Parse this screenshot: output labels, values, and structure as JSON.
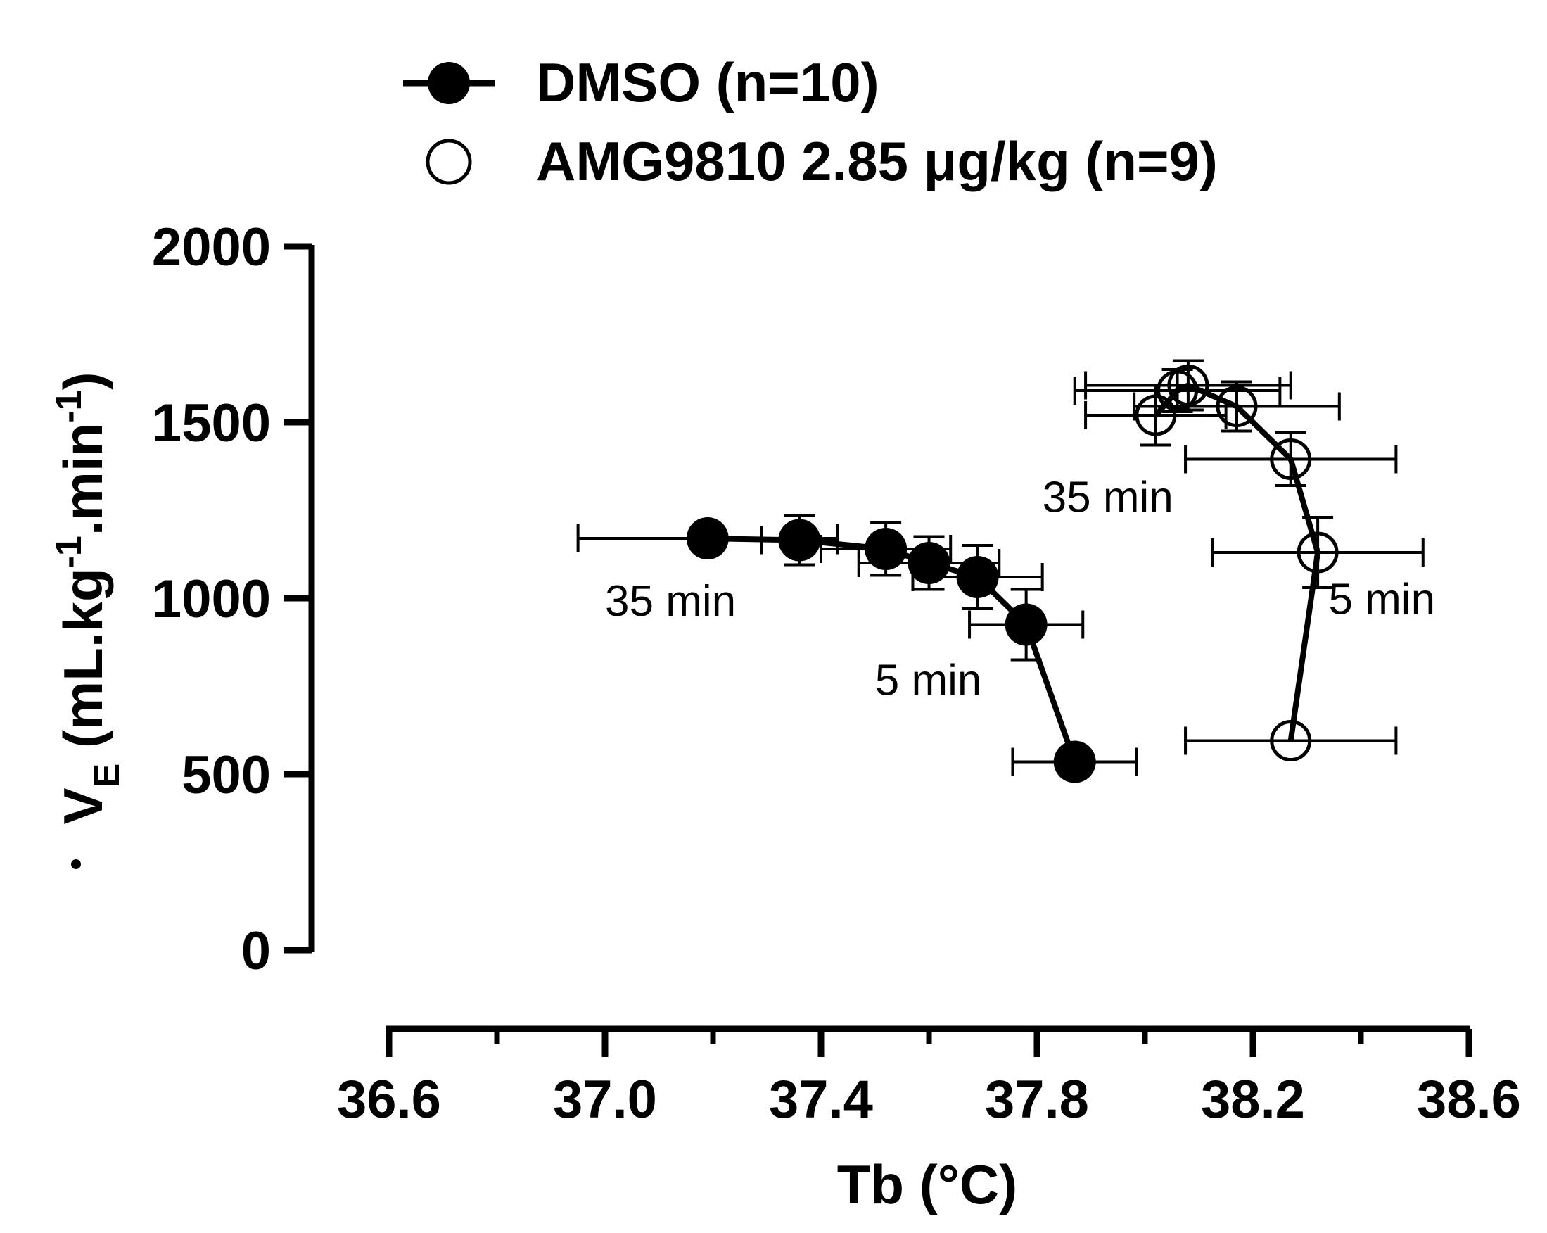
{
  "chart_data": {
    "type": "scatter",
    "title": "",
    "xlabel": "Tb (°C)",
    "ylabel": {
      "main": "V",
      "sub": "E",
      "open": " (mL.kg",
      "exp1": "-1",
      "mid": ".min",
      "exp2": "-1",
      "close": ")"
    },
    "xlim": [
      36.6,
      38.6
    ],
    "ylim": [
      0,
      2000
    ],
    "x_ticks": [
      "36.6",
      "37.0",
      "37.4",
      "37.8",
      "38.2",
      "38.6"
    ],
    "y_ticks": [
      "0",
      "500",
      "1000",
      "1500",
      "2000"
    ],
    "legend": {
      "position": "top"
    },
    "series": [
      {
        "name": "DMSO (n=10)",
        "marker": "filled-circle",
        "points": [
          {
            "x": 37.87,
            "y": 535,
            "x_err": 0.115,
            "y_err": 0
          },
          {
            "x": 37.78,
            "y": 925,
            "x_err": 0.105,
            "y_err": 100
          },
          {
            "x": 37.69,
            "y": 1060,
            "x_err": 0.12,
            "y_err": 90
          },
          {
            "x": 37.6,
            "y": 1100,
            "x_err": 0.13,
            "y_err": 75
          },
          {
            "x": 37.52,
            "y": 1140,
            "x_err": 0.12,
            "y_err": 75
          },
          {
            "x": 37.36,
            "y": 1165,
            "x_err": 0.07,
            "y_err": 70
          },
          {
            "x": 37.19,
            "y": 1170,
            "x_err": 0.24,
            "y_err": 20
          }
        ]
      },
      {
        "name": "AMG9810 2.85 μg/kg (n=9)",
        "marker": "open-circle",
        "points": [
          {
            "x": 38.27,
            "y": 595,
            "x_err": 0.195,
            "y_err": 0
          },
          {
            "x": 38.32,
            "y": 1130,
            "x_err": 0.195,
            "y_err": 100
          },
          {
            "x": 38.27,
            "y": 1395,
            "x_err": 0.195,
            "y_err": 75
          },
          {
            "x": 38.17,
            "y": 1545,
            "x_err": 0.19,
            "y_err": 70
          },
          {
            "x": 38.08,
            "y": 1605,
            "x_err": 0.19,
            "y_err": 70
          },
          {
            "x": 38.06,
            "y": 1590,
            "x_err": 0.19,
            "y_err": 60
          },
          {
            "x": 38.02,
            "y": 1520,
            "x_err": 0.13,
            "y_err": 85
          }
        ]
      }
    ],
    "annotations": [
      {
        "text": "35 min",
        "x": 37.0,
        "y": 950
      },
      {
        "text": "5 min",
        "x": 37.5,
        "y": 725
      },
      {
        "text": "35 min",
        "x": 37.81,
        "y": 1245
      },
      {
        "text": "5 min",
        "x": 38.34,
        "y": 955
      }
    ]
  }
}
